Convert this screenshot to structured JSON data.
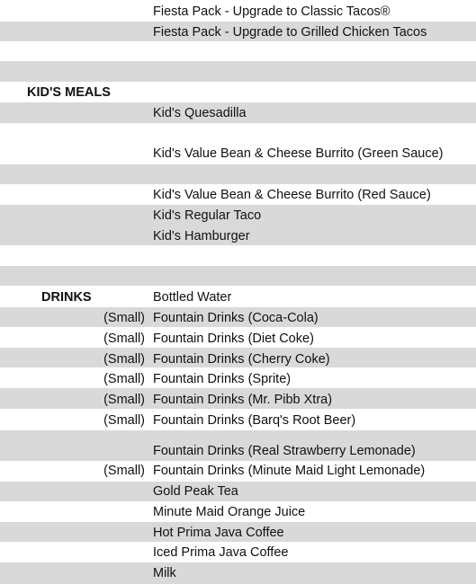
{
  "top_items": [
    "Fiesta Pack - Upgrade to Classic Tacos®",
    "Fiesta Pack - Upgrade to Grilled Chicken Tacos"
  ],
  "kids_meals": {
    "heading": "KID'S MEALS",
    "items": [
      "Kid's Quesadilla",
      "Kid's Value Bean & Cheese Burrito (Green Sauce)",
      "Kid's Value Bean & Cheese Burrito (Red Sauce)",
      "Kid's Regular Taco",
      "Kid's Hamburger"
    ]
  },
  "drinks": {
    "heading": "DRINKS",
    "items": [
      {
        "size": "",
        "name": "Bottled Water"
      },
      {
        "size": "(Small)",
        "name": "Fountain Drinks (Coca-Cola)"
      },
      {
        "size": "(Small)",
        "name": "Fountain Drinks (Diet Coke)"
      },
      {
        "size": "(Small)",
        "name": "Fountain Drinks (Cherry Coke)"
      },
      {
        "size": "(Small)",
        "name": "Fountain Drinks (Sprite)"
      },
      {
        "size": "(Small)",
        "name": "Fountain Drinks (Mr. Pibb Xtra)"
      },
      {
        "size": "(Small)",
        "name": "Fountain Drinks (Barq's Root Beer)"
      },
      {
        "size": "",
        "name": "Fountain Drinks (Real Strawberry Lemonade)"
      },
      {
        "size": "(Small)",
        "name": "Fountain Drinks (Minute Maid Light Lemonade)"
      },
      {
        "size": "",
        "name": "Gold Peak Tea"
      },
      {
        "size": "",
        "name": "Minute Maid Orange Juice"
      },
      {
        "size": "",
        "name": "Hot Prima Java Coffee"
      },
      {
        "size": "",
        "name": "Iced Prima Java Coffee"
      },
      {
        "size": "",
        "name": "Milk"
      }
    ]
  }
}
